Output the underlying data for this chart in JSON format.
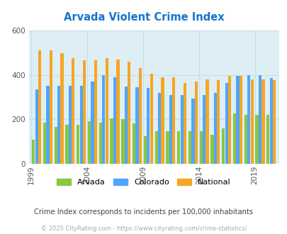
{
  "title": "Arvada Violent Crime Index",
  "title_color": "#1874cd",
  "bg_color": "#ddeef5",
  "fig_bg": "#ffffff",
  "years": [
    1999,
    2000,
    2001,
    2002,
    2003,
    2004,
    2005,
    2006,
    2007,
    2008,
    2009,
    2010,
    2011,
    2012,
    2013,
    2014,
    2015,
    2016,
    2017,
    2018,
    2019,
    2020
  ],
  "arvada": [
    110,
    185,
    165,
    175,
    175,
    190,
    185,
    205,
    200,
    183,
    125,
    148,
    148,
    148,
    148,
    148,
    130,
    160,
    225,
    220,
    220,
    220
  ],
  "colorado": [
    335,
    350,
    350,
    350,
    350,
    370,
    400,
    390,
    348,
    345,
    340,
    320,
    310,
    310,
    295,
    310,
    320,
    365,
    395,
    400,
    400,
    385
  ],
  "national": [
    510,
    510,
    498,
    475,
    465,
    465,
    475,
    470,
    460,
    430,
    405,
    390,
    390,
    365,
    370,
    380,
    375,
    395,
    395,
    380,
    380,
    375
  ],
  "xlabel_years": [
    1999,
    2004,
    2009,
    2014,
    2019
  ],
  "ylim": [
    0,
    600
  ],
  "yticks": [
    0,
    200,
    400,
    600
  ],
  "arvada_color": "#8dc63f",
  "colorado_color": "#4da6ff",
  "national_color": "#f5a623",
  "grid_color": "#c8dde5",
  "subtitle": "Crime Index corresponds to incidents per 100,000 inhabitants",
  "footer": "© 2025 CityRating.com - https://www.cityrating.com/crime-statistics/",
  "subtitle_color": "#444444",
  "footer_color": "#aaaaaa"
}
